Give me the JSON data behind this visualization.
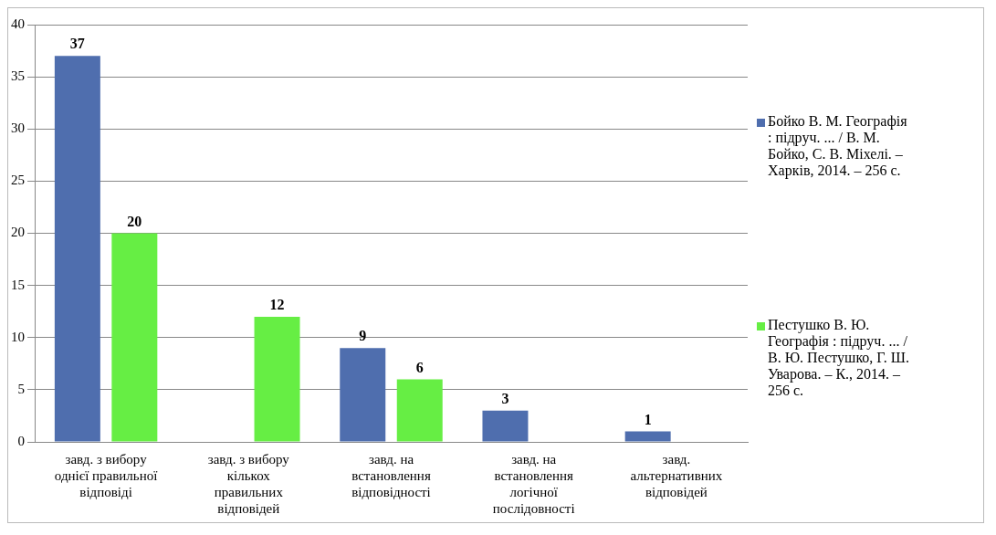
{
  "chart_data": {
    "type": "bar",
    "categories": [
      "завд. з вибору однієї правильної відповіді",
      "завд. з вибору кількох правильних відповідей",
      "завд. на встановлення відповідності",
      "завд. на встановлення логічної послідовності",
      "завд. альтернативних відповідей"
    ],
    "series": [
      {
        "name": "Бойко В. М. Географія : підруч. ... / В. М. Бойко, С. В. Міхелі. – Харків, 2014. – 256 с.",
        "color": "#4f6eae",
        "values": [
          37,
          null,
          9,
          3,
          1
        ]
      },
      {
        "name": "Пестушко В. Ю. Географія : підруч. ... / В. Ю. Пестушко, Г. Ш. Уварова. – К., 2014. – 256 с.",
        "color": "#66ee44",
        "values": [
          20,
          12,
          6,
          null,
          null
        ]
      }
    ],
    "ylim": [
      0,
      40
    ],
    "yticks": [
      0,
      5,
      10,
      15,
      20,
      25,
      30,
      35,
      40
    ],
    "grid": "y",
    "legend": "right",
    "data_labels": true
  }
}
